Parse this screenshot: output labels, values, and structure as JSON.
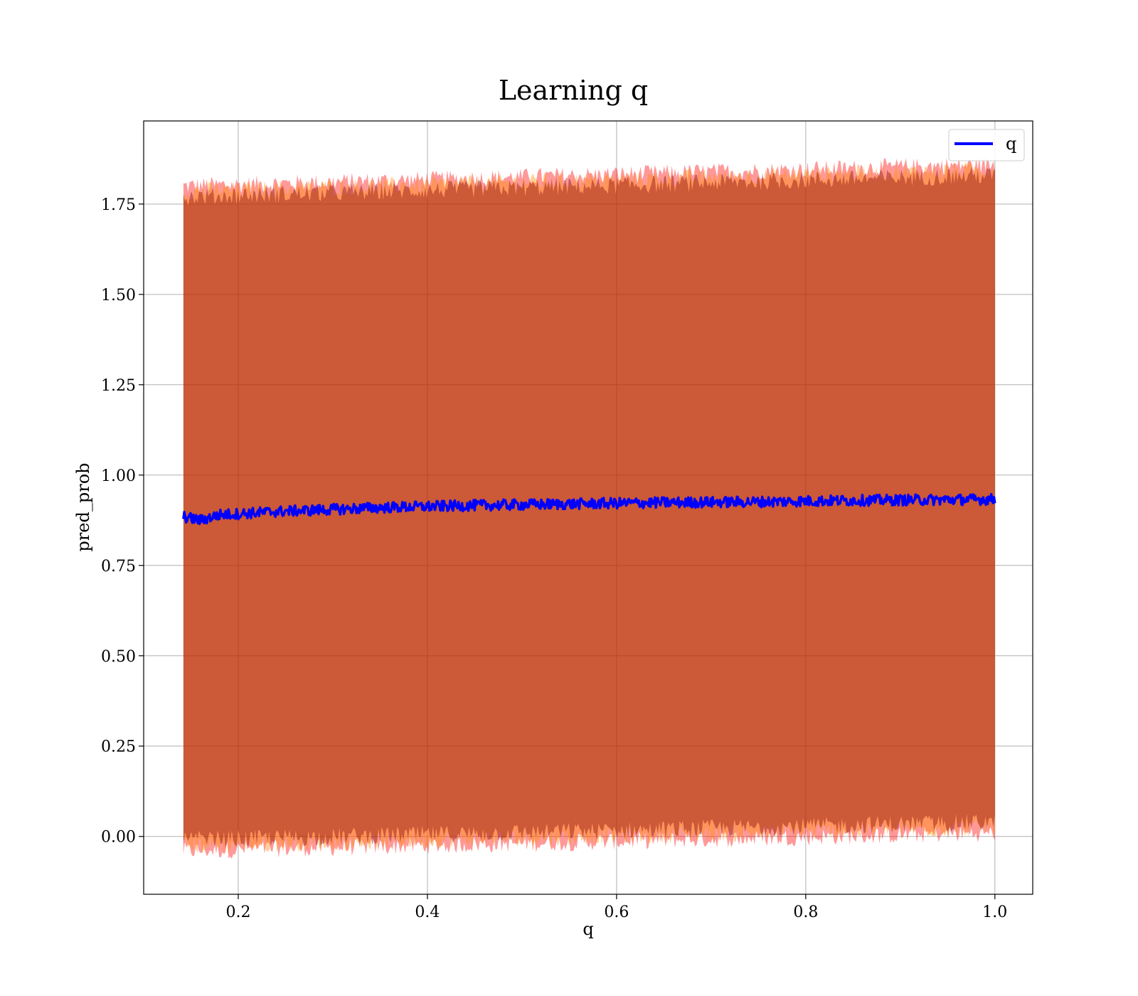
{
  "chart_data": {
    "type": "line",
    "title": "Learning q",
    "xlabel": "q",
    "ylabel": "pred_prob",
    "xlim": [
      0.1,
      1.04
    ],
    "ylim": [
      -0.16,
      1.98
    ],
    "x_ticks": [
      0.2,
      0.4,
      0.6,
      0.8,
      1.0
    ],
    "x_tick_labels": [
      "0.2",
      "0.4",
      "0.6",
      "0.8",
      "1.0"
    ],
    "y_ticks": [
      0.0,
      0.25,
      0.5,
      0.75,
      1.0,
      1.25,
      1.5,
      1.75
    ],
    "y_tick_labels": [
      "0.00",
      "0.25",
      "0.50",
      "0.75",
      "1.00",
      "1.25",
      "1.50",
      "1.75"
    ],
    "grid": true,
    "legend_position": "top-right",
    "series": [
      {
        "name": "q",
        "color": "#0000ff",
        "x": [
          0.142,
          0.15,
          0.16,
          0.18,
          0.2,
          0.25,
          0.3,
          0.35,
          0.4,
          0.45,
          0.5,
          0.55,
          0.6,
          0.65,
          0.7,
          0.75,
          0.8,
          0.85,
          0.9,
          0.95,
          1.0
        ],
        "values": [
          0.885,
          0.88,
          0.875,
          0.89,
          0.893,
          0.9,
          0.905,
          0.91,
          0.913,
          0.916,
          0.918,
          0.92,
          0.922,
          0.924,
          0.925,
          0.926,
          0.928,
          0.93,
          0.931,
          0.932,
          0.933
        ]
      }
    ],
    "bands": [
      {
        "kind": "outer",
        "color": "#ff0000",
        "x": [
          0.142,
          1.0
        ],
        "upper": [
          1.8,
          1.86
        ],
        "lower": [
          -0.04,
          0.01
        ]
      },
      {
        "kind": "middle",
        "color": "#ff8c00",
        "x": [
          0.142,
          1.0
        ],
        "upper": [
          1.785,
          1.845
        ],
        "lower": [
          -0.025,
          0.025
        ]
      },
      {
        "kind": "inner",
        "color": "#800000",
        "x": [
          0.142,
          1.0
        ],
        "upper": [
          1.77,
          1.83
        ],
        "lower": [
          -0.01,
          0.04
        ]
      }
    ]
  }
}
